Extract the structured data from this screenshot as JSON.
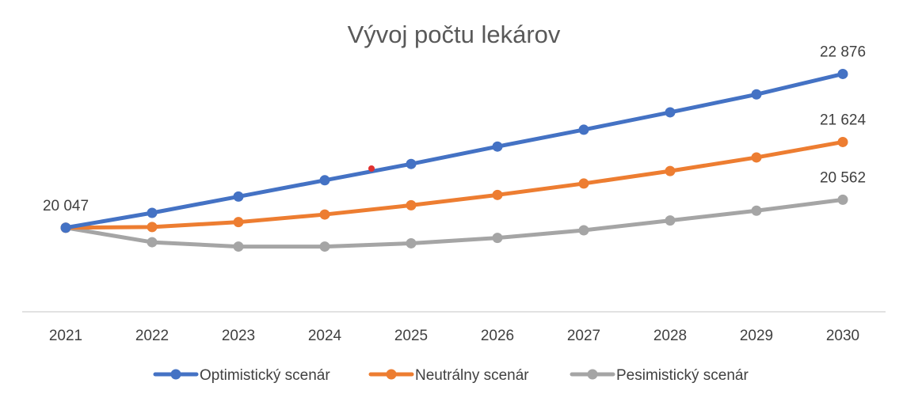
{
  "chart_data": {
    "type": "line",
    "title": "Vývoj počtu lekárov",
    "xlabel": "",
    "ylabel": "",
    "x": [
      "2021",
      "2022",
      "2023",
      "2024",
      "2025",
      "2026",
      "2027",
      "2028",
      "2029",
      "2030"
    ],
    "ylim": [
      18500,
      23800
    ],
    "y_axis_visible": false,
    "grid": false,
    "legend_position": "bottom",
    "series": [
      {
        "name": "Optimistický scenár",
        "color": "#4472C4",
        "values": [
          20047,
          20320,
          20620,
          20920,
          21220,
          21540,
          21850,
          22170,
          22500,
          22876
        ]
      },
      {
        "name": "Neutrálny scenár",
        "color": "#ED7D31",
        "values": [
          20047,
          20060,
          20150,
          20290,
          20460,
          20650,
          20860,
          21090,
          21340,
          21624
        ]
      },
      {
        "name": "Pesimistický scenár",
        "color": "#A5A5A5",
        "values": [
          20047,
          19780,
          19700,
          19700,
          19760,
          19860,
          20000,
          20180,
          20360,
          20562
        ]
      }
    ],
    "data_labels": [
      {
        "series": 0,
        "index": 0,
        "text": "20 047"
      },
      {
        "series": 0,
        "index": 9,
        "text": "22 876"
      },
      {
        "series": 1,
        "index": 9,
        "text": "21 624"
      },
      {
        "series": 2,
        "index": 9,
        "text": "20 562"
      }
    ]
  },
  "colors": {
    "axis_line": "#D9D9D9",
    "stray_dot": "#E03030"
  }
}
